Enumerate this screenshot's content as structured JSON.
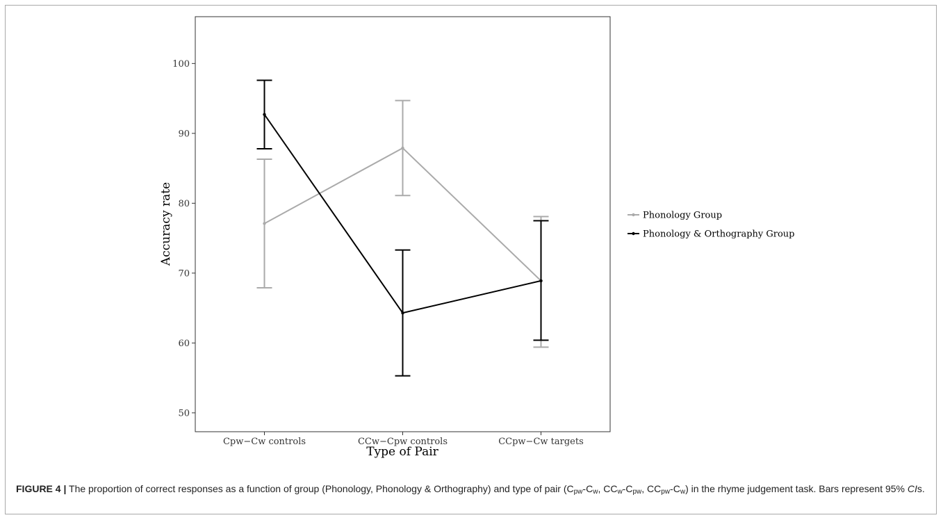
{
  "chart_data": {
    "type": "line",
    "categories": [
      "Cpw−Cw controls",
      "CCw−Cpw controls",
      "CCpw−Cw targets"
    ],
    "xlabel": "Type of Pair",
    "ylabel": "Accuracy rate",
    "ylim": [
      47.3,
      106.7
    ],
    "yticks": [
      50,
      60,
      70,
      80,
      90,
      100
    ],
    "grid": false,
    "legend_position": "right",
    "series": [
      {
        "name": "Phonology Group",
        "color": "#aaaaaa",
        "values": [
          77.1,
          87.9,
          68.9
        ],
        "ci_low": [
          67.9,
          81.1,
          59.4
        ],
        "ci_high": [
          86.3,
          94.7,
          78.1
        ]
      },
      {
        "name": "Phonology & Orthography Group",
        "color": "#000000",
        "values": [
          92.7,
          64.3,
          68.9
        ],
        "ci_low": [
          87.8,
          55.3,
          60.4
        ],
        "ci_high": [
          97.6,
          73.3,
          77.5
        ]
      }
    ]
  },
  "caption": {
    "label": "FIGURE 4 |",
    "t1": " The proportion of correct responses as a function of group (Phonology, Phonology & Orthography) and type of pair (C",
    "s1": "pw",
    "t2": "-C",
    "s2": "w",
    "t3": ", CC",
    "s3": "w",
    "t4": "-C",
    "s4": "pw",
    "t5": ", CC",
    "s5": "pw",
    "t6": "-C",
    "s6": "w",
    "t7": ") in the rhyme judgement task. Bars represent 95% ",
    "ci": "CI",
    "t8": "s."
  }
}
